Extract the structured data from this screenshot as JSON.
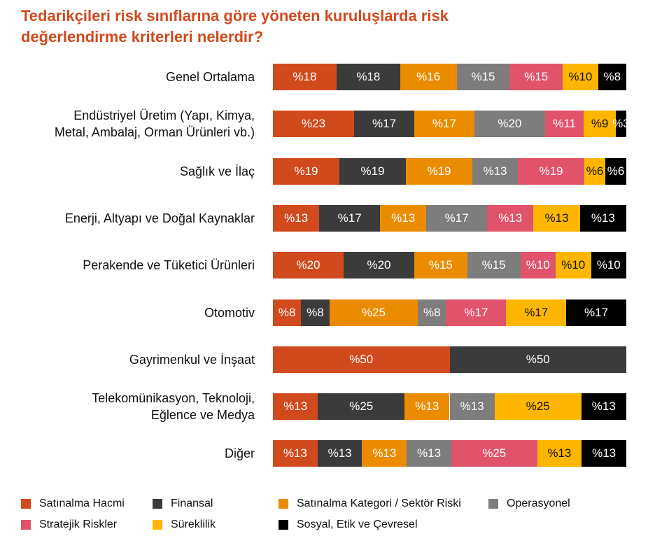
{
  "chart_data": {
    "type": "stacked-bar-horizontal",
    "title": "Tedarikçileri risk sınıflarına göre yöneten kuruluşlarda risk\ndeğerlendirme kriterleri nelerdir?",
    "categories": [
      "Genel Ortalama",
      "Endüstriyel Üretim (Yapı, Kimya,\nMetal, Ambalaj, Orman Ürünleri vb.)",
      "Sağlık ve İlaç",
      "Enerji, Altyapı ve Doğal Kaynaklar",
      "Perakende ve Tüketici Ürünleri",
      "Otomotiv",
      "Gayrimenkul ve İnşaat",
      "Telekomünikasyon, Teknoloji,\nEğlence ve Medya",
      "Diğer"
    ],
    "series": [
      {
        "name": "Satınalma Hacmi",
        "color": "#d04a1e",
        "values": [
          18,
          23,
          19,
          13,
          20,
          8,
          50,
          13,
          13
        ],
        "value_labels": [
          "%18",
          "%23",
          "%19",
          "%13",
          "%20",
          "%8",
          "%50",
          "%13",
          "%13"
        ]
      },
      {
        "name": "Finansal",
        "color": "#3b3b3b",
        "values": [
          18,
          17,
          19,
          17,
          20,
          8,
          50,
          25,
          13
        ],
        "value_labels": [
          "%18",
          "%17",
          "%19",
          "%17",
          "%20",
          "%8",
          "%50",
          "%25",
          "%13"
        ]
      },
      {
        "name": "Satınalma Kategori / Sektör Riski",
        "color": "#eb8c00",
        "values": [
          16,
          17,
          19,
          13,
          15,
          25,
          null,
          13,
          13
        ],
        "value_labels": [
          "%16",
          "%17",
          "%19",
          "%13",
          "%15",
          "%25",
          null,
          "%13",
          "%13"
        ]
      },
      {
        "name": "Operasyonel",
        "color": "#7d7d7d",
        "values": [
          15,
          20,
          13,
          17,
          15,
          8,
          null,
          13,
          13
        ],
        "value_labels": [
          "%15",
          "%20",
          "%13",
          "%17",
          "%15",
          "%8",
          null,
          "%13",
          "%13"
        ]
      },
      {
        "name": "Stratejik Riskler",
        "color": "#e0536b",
        "values": [
          15,
          11,
          19,
          13,
          10,
          17,
          null,
          null,
          25
        ],
        "value_labels": [
          "%15",
          "%11",
          "%19",
          "%13",
          "%10",
          "%17",
          null,
          null,
          "%25"
        ]
      },
      {
        "name": "Süreklilik",
        "color": "#ffb600",
        "values": [
          10,
          9,
          6,
          13,
          10,
          17,
          null,
          25,
          13
        ],
        "value_labels": [
          "%10",
          "%9",
          "%6",
          "%13",
          "%10",
          "%17",
          null,
          "%25",
          "%13"
        ]
      },
      {
        "name": "Sosyal, Etik ve Çevresel",
        "color": "#000000",
        "values": [
          8,
          3,
          6,
          13,
          10,
          17,
          null,
          13,
          13
        ],
        "value_labels": [
          "%8",
          "%3",
          "%6",
          "%13",
          "%10",
          "%17",
          null,
          "%13",
          "%13"
        ]
      }
    ]
  }
}
